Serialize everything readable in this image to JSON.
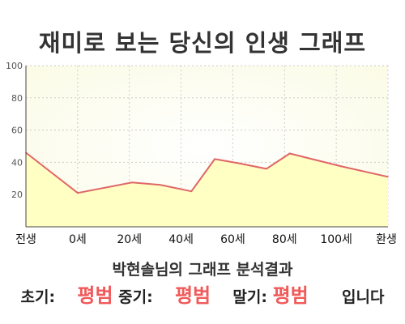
{
  "title": "재미로 보는 당신의 인생 그래프",
  "chart_data": {
    "type": "area",
    "x_labels": [
      "전생",
      "0세",
      "20세",
      "40세",
      "60세",
      "80세",
      "100세",
      "환생"
    ],
    "ylim": [
      0,
      100
    ],
    "y_ticks": [
      20,
      40,
      60,
      80,
      100
    ],
    "points": [
      {
        "x": 0,
        "y": 46
      },
      {
        "x": 1,
        "y": 21
      },
      {
        "x": 2.05,
        "y": 27.5
      },
      {
        "x": 2.6,
        "y": 26
      },
      {
        "x": 3.2,
        "y": 22
      },
      {
        "x": 3.65,
        "y": 42
      },
      {
        "x": 4.1,
        "y": 39.5
      },
      {
        "x": 4.65,
        "y": 36
      },
      {
        "x": 5.1,
        "y": 45.5
      },
      {
        "x": 6.1,
        "y": 37.5
      },
      {
        "x": 7,
        "y": 31
      }
    ],
    "line_color": "#e06666",
    "fill_color": "#ffffc4",
    "grid": true
  },
  "result": {
    "name_line": "박현솔님의 그래프 분석결과",
    "early_label": "초기:",
    "early_value": "평범",
    "mid_label": "중기:",
    "mid_value": "평범",
    "late_label": "말기:",
    "late_value": "평범",
    "suffix": "입니다"
  }
}
